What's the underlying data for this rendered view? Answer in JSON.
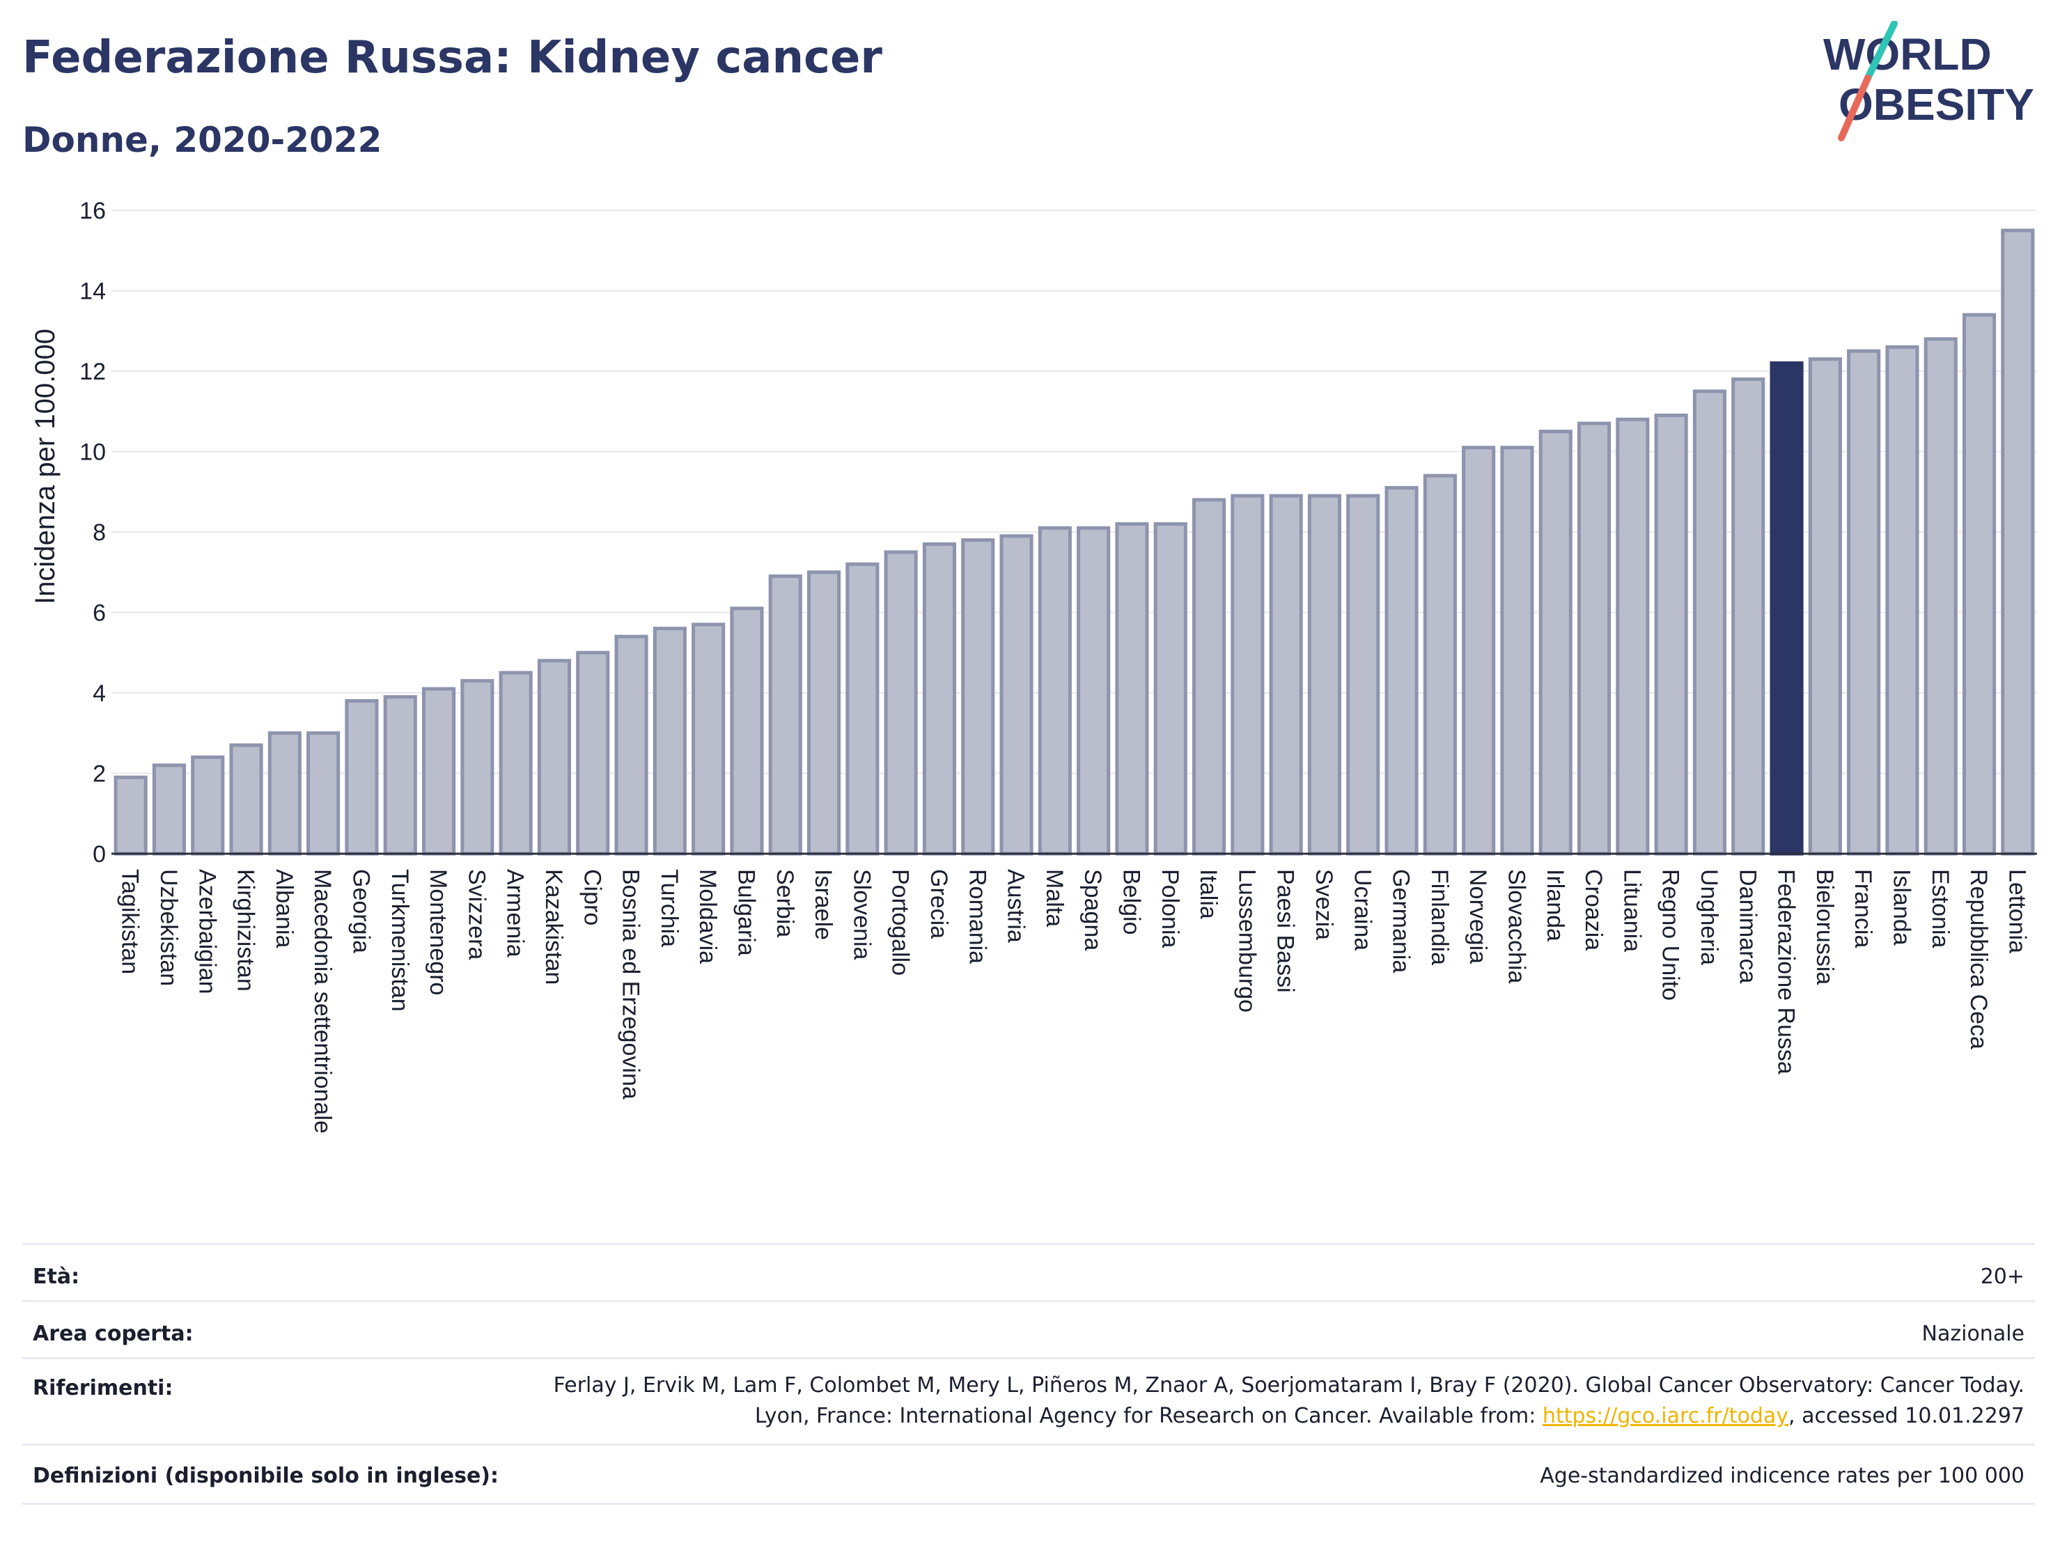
{
  "header": {
    "title": "Federazione Russa: Kidney cancer",
    "subtitle": "Donne, 2020-2022",
    "logo_line1": "WORLD",
    "logo_line2": "OBESITY"
  },
  "colors": {
    "bar": "#b9bdcc",
    "bar_border": "#8e94ad",
    "highlight": "#2b3665",
    "grid": "#e6e8ee",
    "axis": "#2b2f3f",
    "logo_text": "#2b3665",
    "logo_slash_top": "#2ec4b6",
    "logo_slash_bottom": "#e8685a"
  },
  "chart_data": {
    "type": "bar",
    "ylabel": "Incidenza per 100.000",
    "ylim": [
      0,
      16
    ],
    "yticks": [
      0,
      2,
      4,
      6,
      8,
      10,
      12,
      14,
      16
    ],
    "grid": true,
    "highlight": "Federazione Russa",
    "categories": [
      "Tagikistan",
      "Uzbekistan",
      "Azerbaigian",
      "Kirghizistan",
      "Albania",
      "Macedonia settentrionale",
      "Georgia",
      "Turkmenistan",
      "Montenegro",
      "Svizzera",
      "Armenia",
      "Kazakistan",
      "Cipro",
      "Bosnia ed Erzegovina",
      "Turchia",
      "Moldavia",
      "Bulgaria",
      "Serbia",
      "Israele",
      "Slovenia",
      "Portogallo",
      "Grecia",
      "Romania",
      "Austria",
      "Malta",
      "Spagna",
      "Belgio",
      "Polonia",
      "Italia",
      "Lussemburgo",
      "Paesi Bassi",
      "Svezia",
      "Ucraina",
      "Germania",
      "Finlandia",
      "Norvegia",
      "Slovacchia",
      "Irlanda",
      "Croazia",
      "Lituania",
      "Regno Unito",
      "Ungheria",
      "Danimarca",
      "Federazione Russa",
      "Bielorussia",
      "Francia",
      "Islanda",
      "Estonia",
      "Repubblica Ceca",
      "Lettonia"
    ],
    "values": [
      1.9,
      2.2,
      2.4,
      2.7,
      3.0,
      3.0,
      3.8,
      3.9,
      4.1,
      4.3,
      4.5,
      4.8,
      5.0,
      5.4,
      5.6,
      5.7,
      6.1,
      6.9,
      7.0,
      7.2,
      7.5,
      7.7,
      7.8,
      7.9,
      8.1,
      8.1,
      8.2,
      8.2,
      8.8,
      8.9,
      8.9,
      8.9,
      8.9,
      9.1,
      9.4,
      10.1,
      10.1,
      10.5,
      10.7,
      10.8,
      10.9,
      11.5,
      11.8,
      12.2,
      12.3,
      12.5,
      12.6,
      12.8,
      13.4,
      15.5
    ]
  },
  "meta": {
    "age_label": "Età:",
    "age_value": "20+",
    "area_label": "Area coperta:",
    "area_value": "Nazionale",
    "ref_label": "Riferimenti:",
    "ref_text_1": "Ferlay J, Ervik M, Lam F, Colombet M, Mery L, Piñeros M, Znaor A, Soerjomataram I, Bray F (2020). Global Cancer Observatory: Cancer Today. Lyon, France: International Agency for Research on Cancer. Available from: ",
    "ref_link": "https://gco.iarc.fr/today",
    "ref_text_2": ", accessed 10.01.2297",
    "def_label": "Definizioni (disponibile solo in inglese):",
    "def_value": "Age-standardized indicence rates per 100 000"
  }
}
